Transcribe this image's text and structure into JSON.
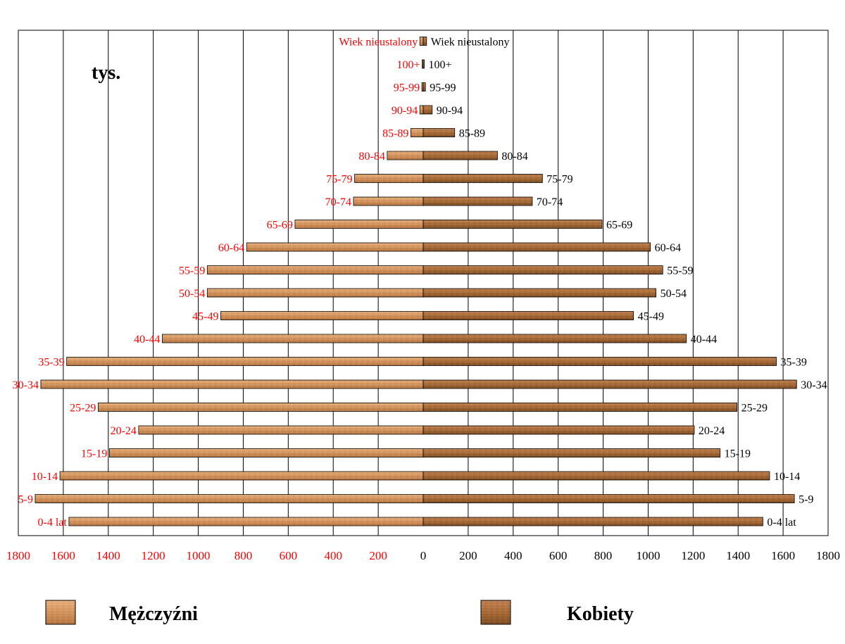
{
  "chart_data": {
    "type": "bar",
    "orientation": "horizontal",
    "unit_label": "tys.",
    "categories": [
      "0-4 lat",
      "5-9",
      "10-14",
      "15-19",
      "20-24",
      "25-29",
      "30-34",
      "35-39",
      "40-44",
      "45-49",
      "50-54",
      "55-59",
      "60-64",
      "65-69",
      "70-74",
      "75-79",
      "80-84",
      "85-89",
      "90-94",
      "95-99",
      "100+",
      "Wiek nieustalony"
    ],
    "series": [
      {
        "name": "Mężczyźni",
        "side": "left",
        "color": "#d4935c",
        "label_color": "#ff0000",
        "values": [
          1575,
          1725,
          1615,
          1395,
          1265,
          1445,
          1700,
          1585,
          1160,
          900,
          960,
          960,
          785,
          570,
          310,
          305,
          160,
          55,
          15,
          6,
          2,
          15
        ]
      },
      {
        "name": "Kobiety",
        "side": "right",
        "color": "#a86a35",
        "label_color": "#000000",
        "values": [
          1510,
          1650,
          1540,
          1320,
          1205,
          1395,
          1660,
          1570,
          1170,
          935,
          1035,
          1065,
          1010,
          795,
          485,
          530,
          330,
          140,
          40,
          10,
          2,
          15
        ]
      }
    ],
    "x_ticks_left": [
      "1800",
      "1600",
      "1400",
      "1200",
      "1000",
      "800",
      "600",
      "400",
      "200"
    ],
    "x_tick_center": "0",
    "x_ticks_right": [
      "200",
      "400",
      "600",
      "800",
      "1000",
      "1200",
      "1400",
      "1600",
      "1800"
    ],
    "xlim": [
      0,
      1800
    ],
    "grid": true,
    "legend_position": "bottom"
  },
  "legend": {
    "men_label": "Mężczyźni",
    "women_label": "Kobiety"
  }
}
